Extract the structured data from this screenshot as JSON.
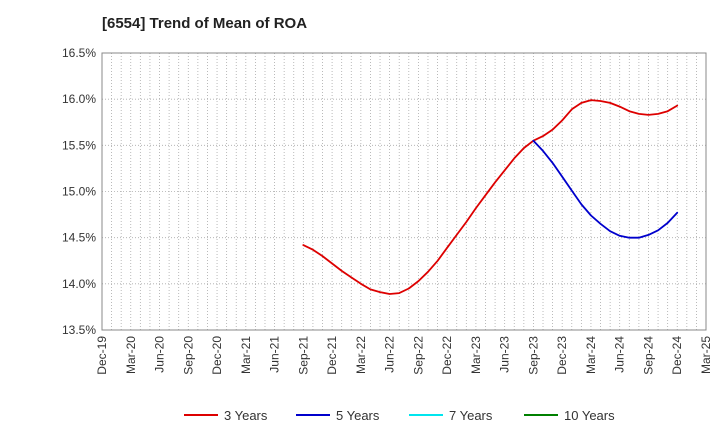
{
  "chart_data": {
    "type": "line",
    "title": "[6554]  Trend of Mean of ROA",
    "xlabel": "",
    "ylabel": "",
    "y_ticks": [
      "13.5%",
      "14.0%",
      "14.5%",
      "15.0%",
      "15.5%",
      "16.0%",
      "16.5%"
    ],
    "ylim": [
      13.5,
      16.5
    ],
    "x_ticks": [
      "Dec-19",
      "Mar-20",
      "Jun-20",
      "Sep-20",
      "Dec-20",
      "Mar-21",
      "Jun-21",
      "Sep-21",
      "Dec-21",
      "Mar-22",
      "Jun-22",
      "Sep-22",
      "Dec-22",
      "Mar-23",
      "Jun-23",
      "Sep-23",
      "Dec-23",
      "Mar-24",
      "Jun-24",
      "Sep-24",
      "Dec-24",
      "Mar-25"
    ],
    "grid": true,
    "legend_position": "bottom",
    "series": [
      {
        "name": "3 Years",
        "color": "#dd0000",
        "x": [
          "Sep-21",
          "Oct-21",
          "Nov-21",
          "Dec-21",
          "Jan-22",
          "Feb-22",
          "Mar-22",
          "Apr-22",
          "May-22",
          "Jun-22",
          "Jul-22",
          "Aug-22",
          "Sep-22",
          "Oct-22",
          "Nov-22",
          "Dec-22",
          "Jan-23",
          "Feb-23",
          "Mar-23",
          "Apr-23",
          "May-23",
          "Jun-23",
          "Jul-23",
          "Aug-23",
          "Sep-23",
          "Oct-23",
          "Nov-23",
          "Dec-23",
          "Jan-24",
          "Feb-24",
          "Mar-24",
          "Apr-24",
          "May-24",
          "Jun-24",
          "Jul-24",
          "Aug-24",
          "Sep-24",
          "Oct-24",
          "Nov-24",
          "Dec-24"
        ],
        "values": [
          14.42,
          14.37,
          14.3,
          14.22,
          14.14,
          14.07,
          14.0,
          13.94,
          13.91,
          13.89,
          13.9,
          13.95,
          14.03,
          14.13,
          14.25,
          14.39,
          14.53,
          14.67,
          14.82,
          14.96,
          15.1,
          15.23,
          15.36,
          15.47,
          15.55,
          15.6,
          15.67,
          15.77,
          15.89,
          15.96,
          15.99,
          15.98,
          15.96,
          15.92,
          15.87,
          15.84,
          15.83,
          15.84,
          15.87,
          15.93
        ]
      },
      {
        "name": "5 Years",
        "color": "#0000cc",
        "x": [
          "Sep-23",
          "Oct-23",
          "Nov-23",
          "Dec-23",
          "Jan-24",
          "Feb-24",
          "Mar-24",
          "Apr-24",
          "May-24",
          "Jun-24",
          "Jul-24",
          "Aug-24",
          "Sep-24",
          "Oct-24",
          "Nov-24",
          "Dec-24"
        ],
        "values": [
          15.55,
          15.44,
          15.31,
          15.16,
          15.01,
          14.86,
          14.74,
          14.65,
          14.57,
          14.52,
          14.5,
          14.5,
          14.53,
          14.58,
          14.66,
          14.77
        ]
      },
      {
        "name": "7 Years",
        "color": "#00e5ee",
        "x": [],
        "values": []
      },
      {
        "name": "10 Years",
        "color": "#008000",
        "x": [],
        "values": []
      }
    ]
  }
}
